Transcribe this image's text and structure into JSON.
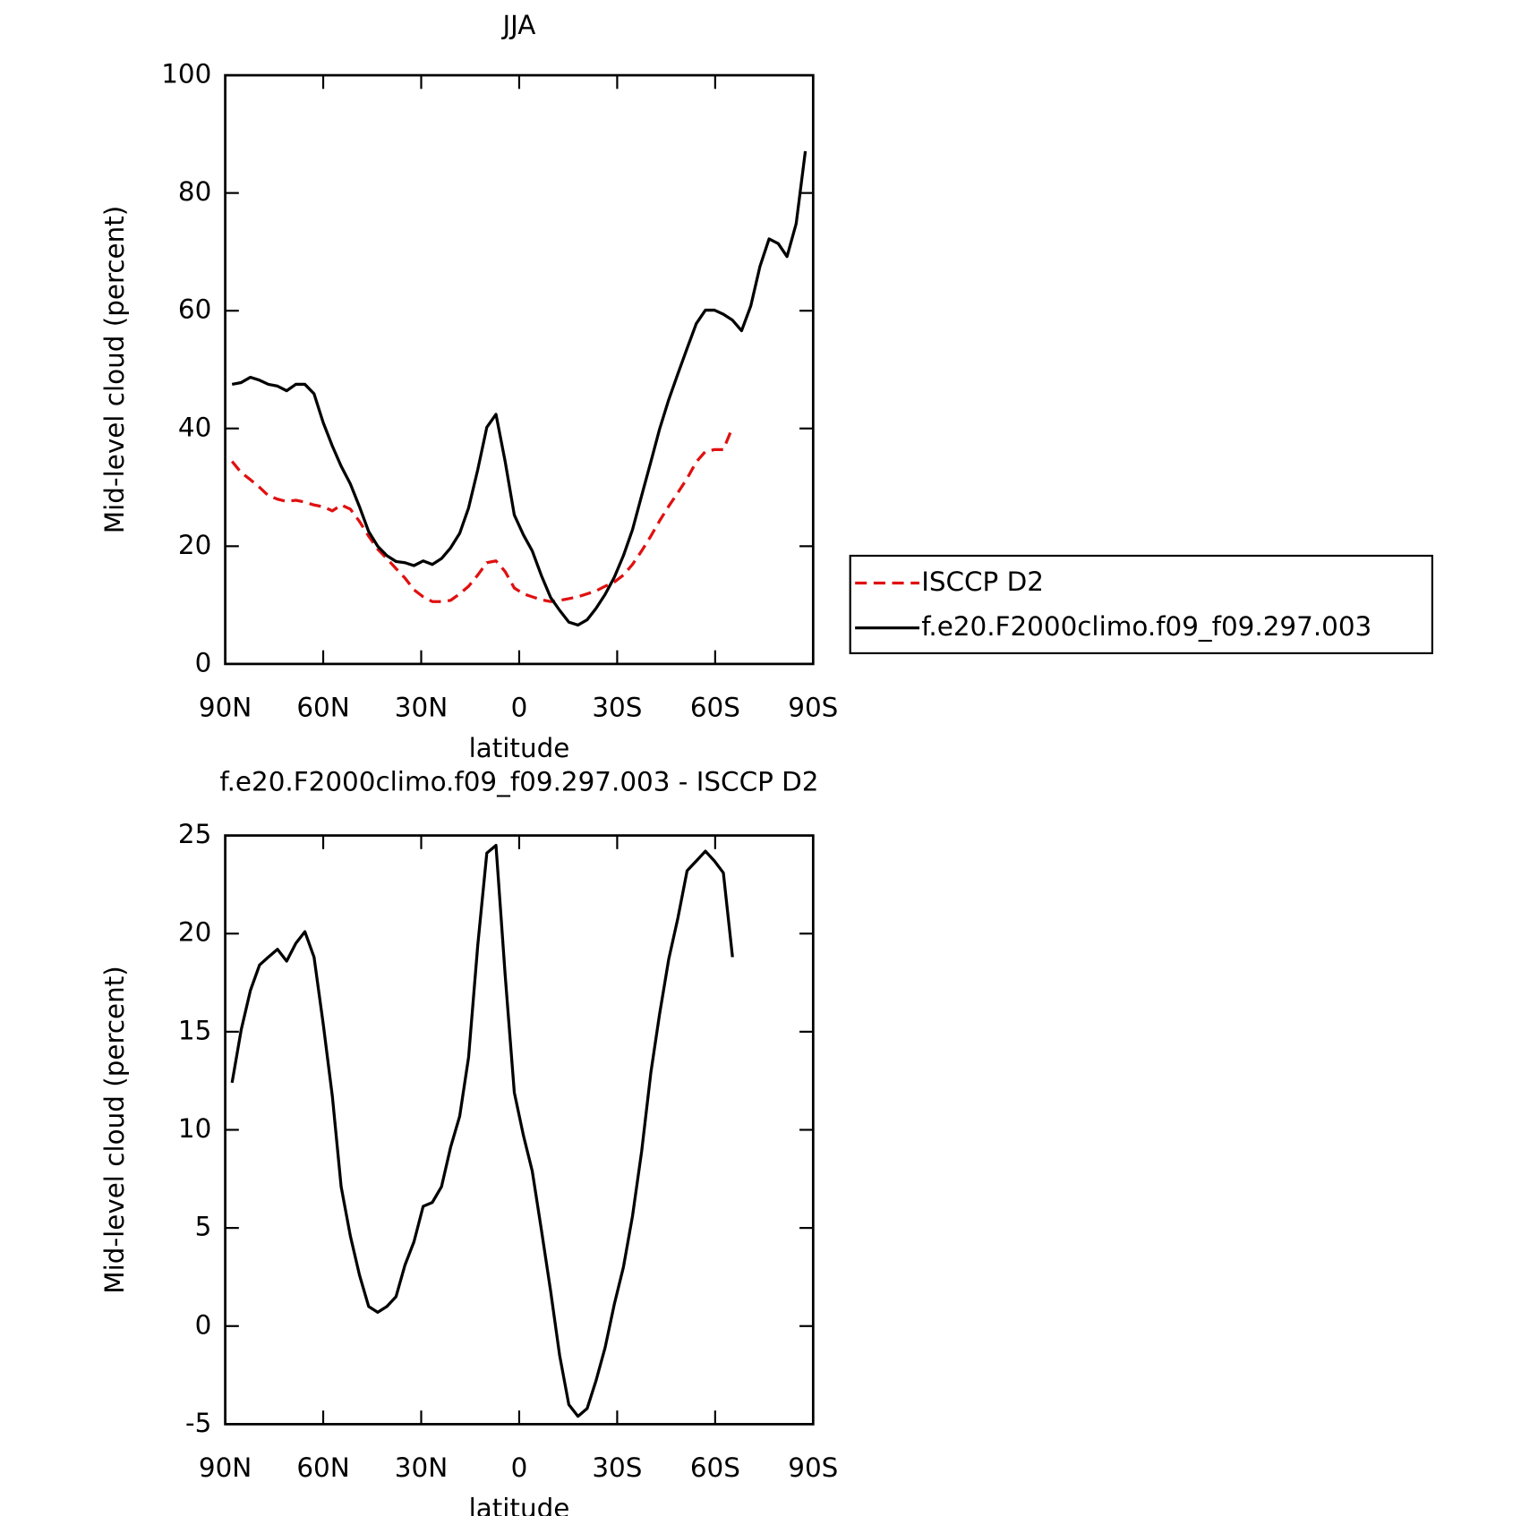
{
  "chart_data": [
    {
      "type": "line",
      "title": "JJA",
      "xlabel": "latitude",
      "ylabel": "Mid-level cloud (percent)",
      "x": [
        87.9,
        85.1,
        82.3,
        79.5,
        76.8,
        74.0,
        71.2,
        68.4,
        65.6,
        62.8,
        60.0,
        57.2,
        54.5,
        51.7,
        48.9,
        46.1,
        43.3,
        40.5,
        37.7,
        35.0,
        32.2,
        29.4,
        26.6,
        23.8,
        21.0,
        18.2,
        15.5,
        12.7,
        9.9,
        7.1,
        4.3,
        1.5,
        -1.3,
        -4.0,
        -6.8,
        -9.6,
        -12.4,
        -15.2,
        -18.0,
        -20.8,
        -23.5,
        -26.3,
        -29.1,
        -31.9,
        -34.7,
        -37.5,
        -40.3,
        -43.0,
        -45.8,
        -48.6,
        -51.4,
        -54.2,
        -57.0,
        -59.8,
        -62.5,
        -65.3,
        -68.1,
        -70.9,
        -73.7,
        -76.5,
        -79.3,
        -82.0,
        -84.8,
        -87.6
      ],
      "series": [
        {
          "name": "ISCCP D2",
          "color": "#e01010",
          "linestyle": "dashed",
          "values": [
            34.4,
            32.5,
            31.3,
            30,
            28.6,
            28,
            27.6,
            27.8,
            27.5,
            27,
            26.7,
            26,
            27,
            26.3,
            24.2,
            21.7,
            19.5,
            17.9,
            16.2,
            14.6,
            12.6,
            11.4,
            10.6,
            10.6,
            10.8,
            11.9,
            13.2,
            15.1,
            17.2,
            17.5,
            15.7,
            12.9,
            11.9,
            11.4,
            10.9,
            10.6,
            10.8,
            11.1,
            11.4,
            11.9,
            12.4,
            13.2,
            13.9,
            15.1,
            16.9,
            19.2,
            21.7,
            24.3,
            26.8,
            29.1,
            31.5,
            34.3,
            36.1,
            36.4,
            36.4,
            40.2,
            null,
            null,
            null,
            null,
            null,
            null,
            null,
            null
          ]
        },
        {
          "name": "f.e20.F2000climo.f09_f09.297.003",
          "color": "#000000",
          "linestyle": "solid",
          "values": [
            47.5,
            47.8,
            48.7,
            48.2,
            47.5,
            47.2,
            46.4,
            47.5,
            47.5,
            45.9,
            41,
            37,
            33.6,
            30.6,
            26.7,
            22.5,
            20,
            18.4,
            17.4,
            17.2,
            16.7,
            17.5,
            16.9,
            17.9,
            19.7,
            22.2,
            26.5,
            33,
            40.2,
            42.4,
            34.4,
            25.3,
            21.9,
            19.2,
            15,
            11.3,
            9.1,
            7.1,
            6.6,
            7.5,
            9.4,
            11.8,
            14.7,
            18.4,
            22.8,
            28.6,
            34.3,
            39.9,
            44.9,
            49.3,
            53.6,
            57.8,
            60.1,
            60.1,
            59.4,
            58.4,
            56.6,
            60.8,
            67.5,
            72.2,
            71.4,
            69.2,
            74.8,
            87.1
          ]
        }
      ],
      "xlim": [
        90,
        -90
      ],
      "xticks": [
        {
          "value": 90,
          "label": "90N"
        },
        {
          "value": 60,
          "label": "60N"
        },
        {
          "value": 30,
          "label": "30N"
        },
        0,
        {
          "value": -30,
          "label": "30S"
        },
        {
          "value": -60,
          "label": "60S"
        },
        {
          "value": -90,
          "label": "90S"
        }
      ],
      "ylim": [
        0,
        100
      ],
      "yticks": [
        0,
        20,
        40,
        60,
        80,
        100
      ],
      "legend": "right"
    },
    {
      "type": "line",
      "title": "f.e20.F2000climo.f09_f09.297.003 - ISCCP D2",
      "xlabel": "latitude",
      "ylabel": "Mid-level cloud (percent)",
      "x": [
        87.9,
        85.1,
        82.3,
        79.5,
        76.8,
        74.0,
        71.2,
        68.4,
        65.6,
        62.8,
        60.0,
        57.2,
        54.5,
        51.7,
        48.9,
        46.1,
        43.3,
        40.5,
        37.7,
        35.0,
        32.2,
        29.4,
        26.6,
        23.8,
        21.0,
        18.2,
        15.5,
        12.7,
        9.9,
        7.1,
        4.3,
        1.5,
        -1.3,
        -4.0,
        -6.8,
        -9.6,
        -12.4,
        -15.2,
        -18.0,
        -20.8,
        -23.5,
        -26.3,
        -29.1,
        -31.9,
        -34.7,
        -37.5,
        -40.3,
        -43.0,
        -45.8,
        -48.6,
        -51.4,
        -54.2,
        -57.0,
        -59.8,
        -62.5,
        -65.3
      ],
      "values": [
        12.4,
        15.1,
        17.1,
        18.4,
        18.8,
        19.2,
        18.6,
        19.5,
        20.1,
        18.8,
        15.4,
        11.7,
        7.1,
        4.6,
        2.6,
        1.0,
        0.7,
        1.0,
        1.5,
        3.1,
        4.3,
        6.1,
        6.3,
        7.1,
        9.1,
        10.7,
        13.7,
        19.4,
        24.1,
        24.5,
        17.9,
        11.9,
        9.7,
        7.9,
        4.9,
        1.8,
        -1.5,
        -4.0,
        -4.6,
        -4.2,
        -2.8,
        -1.1,
        1.1,
        3.0,
        5.6,
        8.9,
        12.9,
        15.9,
        18.7,
        20.8,
        23.2,
        23.7,
        24.2,
        23.7,
        23.1,
        18.8
      ],
      "color": "#000000",
      "xlim": [
        90,
        -90
      ],
      "xticks": [
        {
          "value": 90,
          "label": "90N"
        },
        {
          "value": 60,
          "label": "60N"
        },
        {
          "value": 30,
          "label": "30N"
        },
        0,
        {
          "value": -30,
          "label": "30S"
        },
        {
          "value": -60,
          "label": "60S"
        },
        {
          "value": -90,
          "label": "90S"
        }
      ],
      "ylim": [
        -5,
        25
      ],
      "yticks": [
        -5,
        0,
        5,
        10,
        15,
        20,
        25
      ]
    }
  ]
}
